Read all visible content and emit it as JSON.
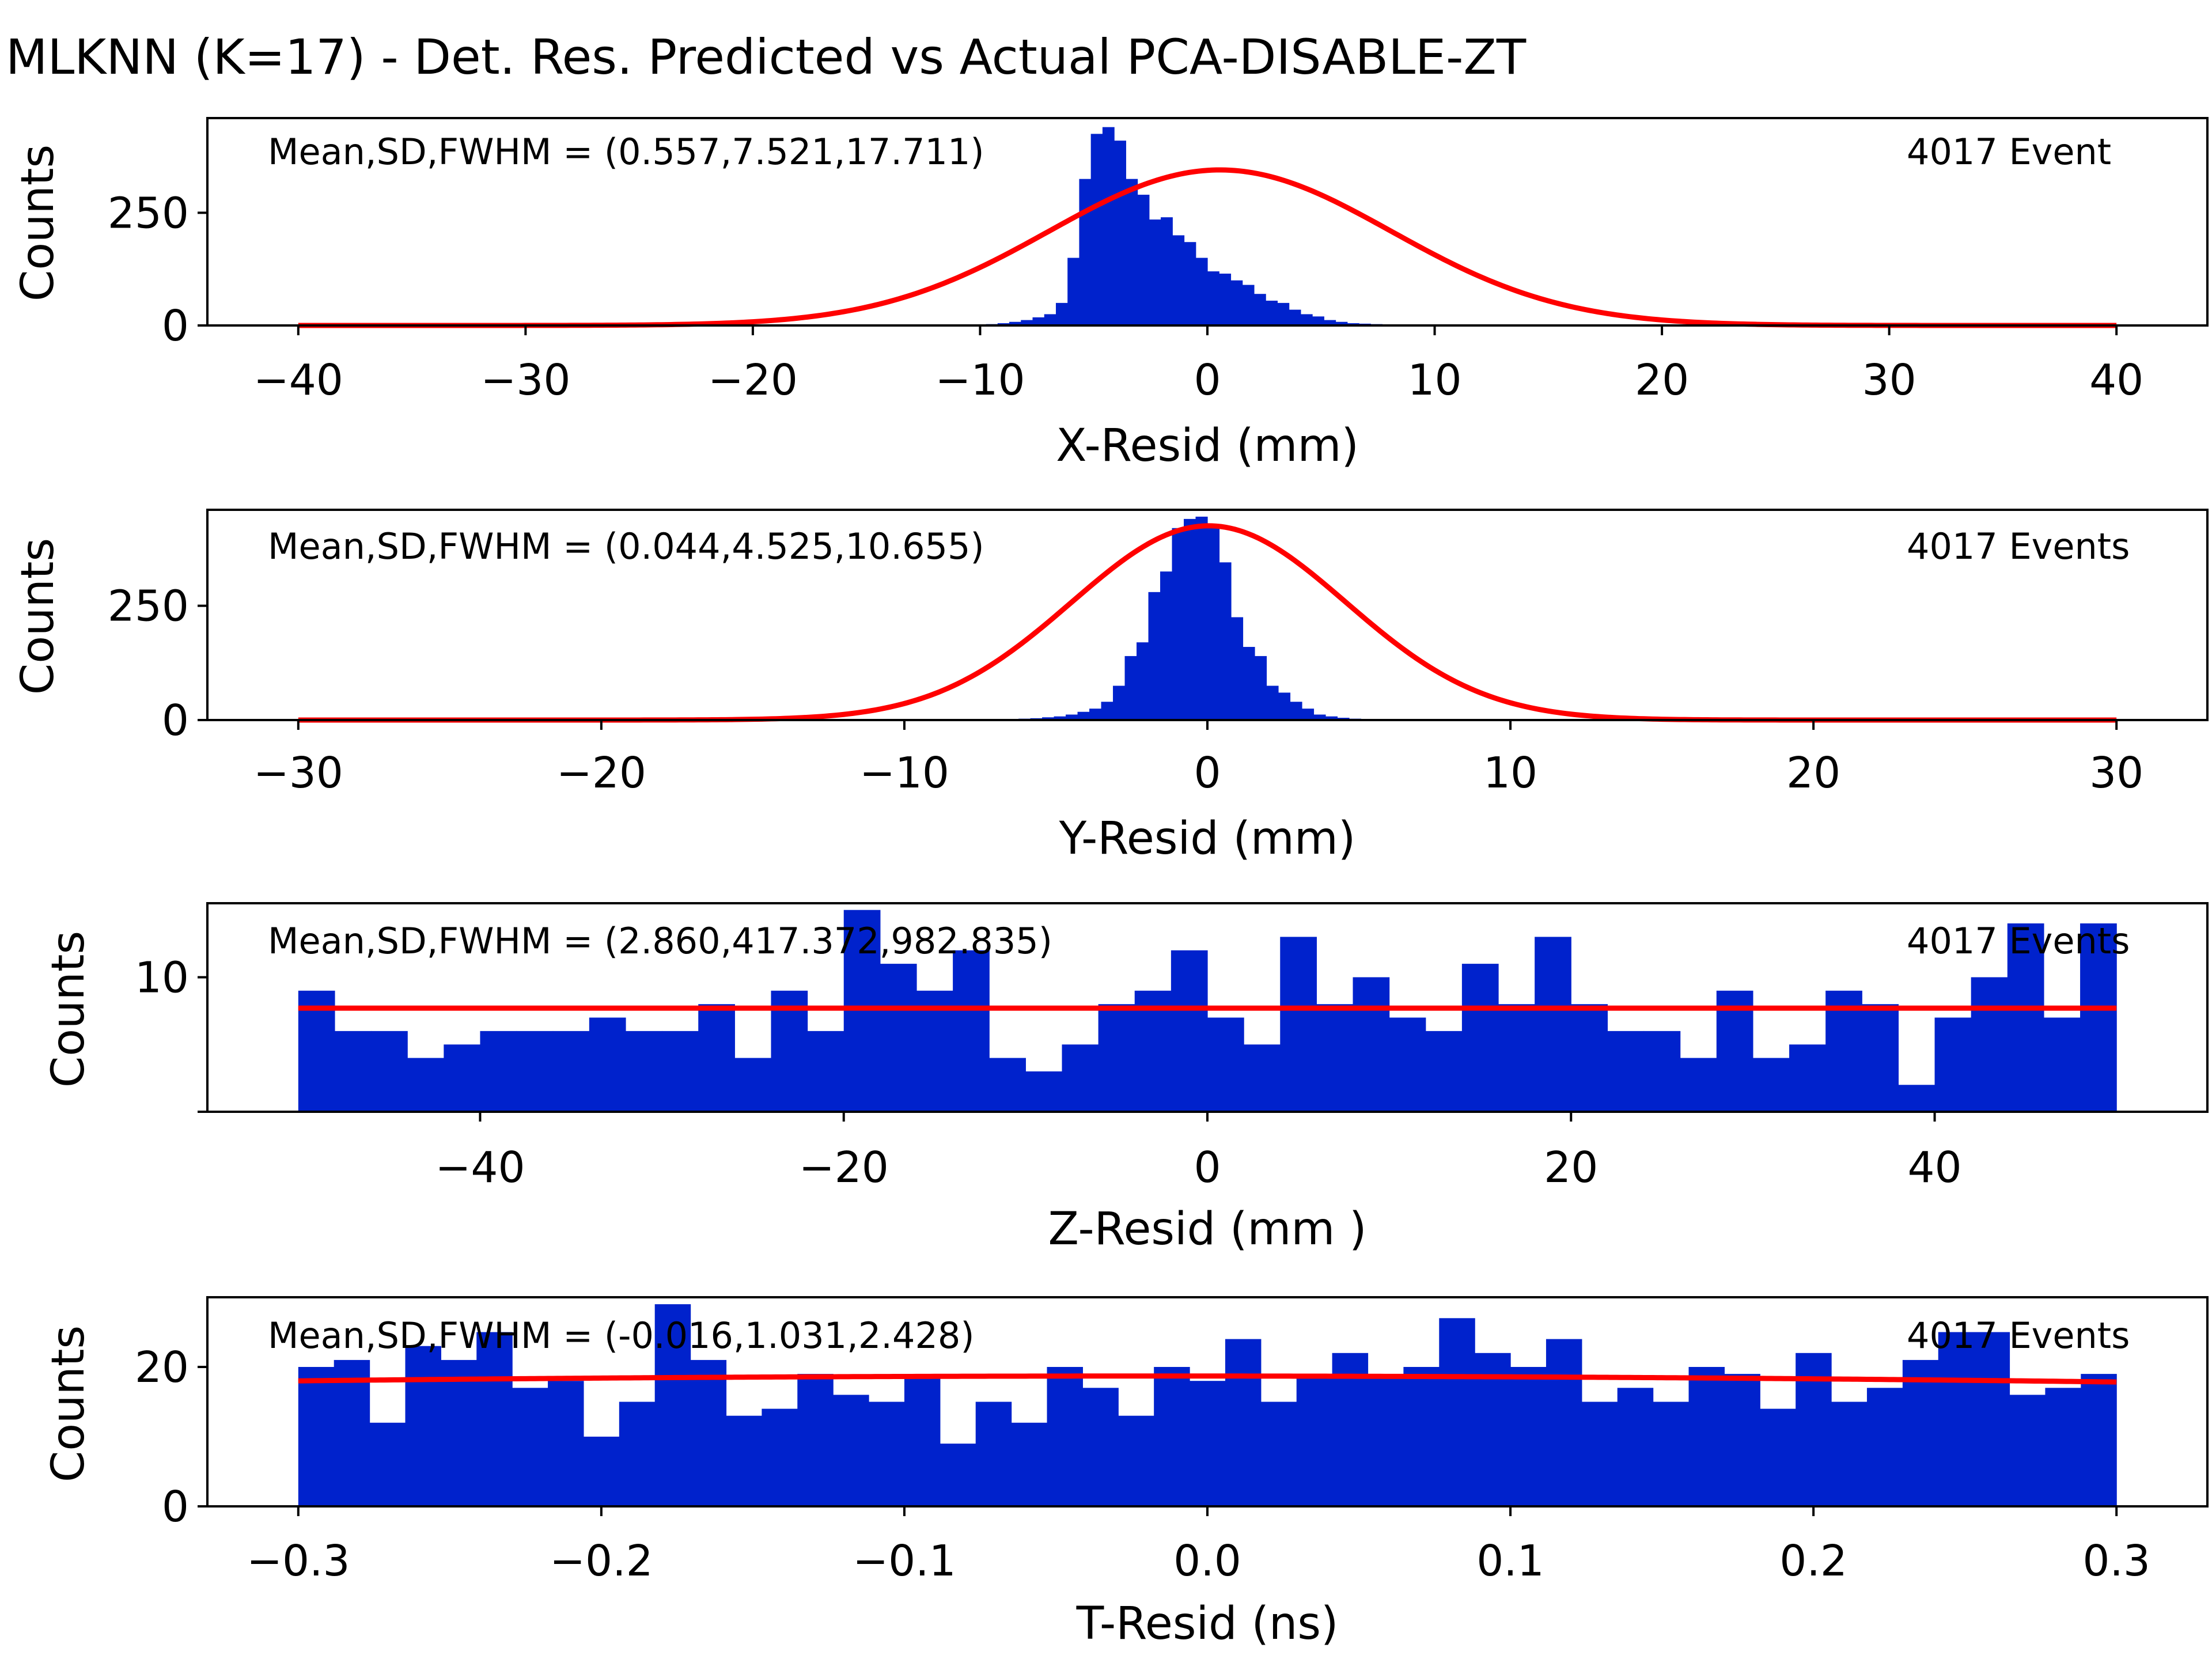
{
  "title": "MLKNN (K=17) - Det. Res. Predicted vs Actual PCA-DISABLE-ZT",
  "colors": {
    "bar": "#0022cc",
    "fit": "#ff0000"
  },
  "chart_data": [
    {
      "type": "bar",
      "xlabel": "X-Resid (mm)",
      "ylabel": "Counts",
      "annotation_left": "Mean,SD,FWHM = (0.557,7.521,17.711)",
      "annotation_right": "4017 Event",
      "xlim": [
        -44,
        44
      ],
      "ylim": [
        0,
        460
      ],
      "xticks": [
        -40,
        -30,
        -20,
        -10,
        0,
        10,
        20,
        30,
        40
      ],
      "xtick_labels": [
        "−40",
        "−30",
        "−20",
        "−10",
        "0",
        "10",
        "20",
        "30",
        "40"
      ],
      "yticks": [
        0,
        250
      ],
      "ytick_labels": [
        "0",
        "250"
      ],
      "bin_range": [
        -40,
        40
      ],
      "counts": [
        0,
        0,
        0,
        0,
        0,
        0,
        0,
        0,
        0,
        0,
        0,
        0,
        0,
        0,
        0,
        0,
        0,
        0,
        0,
        0,
        0,
        0,
        0,
        0,
        0,
        0,
        0,
        0,
        0,
        0,
        0,
        0,
        0,
        0,
        0,
        0,
        0,
        0,
        0,
        0,
        0,
        0,
        0,
        0,
        0,
        0,
        0,
        0,
        0,
        0,
        0,
        0,
        0,
        0,
        0,
        0,
        0,
        1,
        2,
        3,
        5,
        8,
        12,
        18,
        25,
        50,
        150,
        325,
        425,
        440,
        410,
        325,
        290,
        235,
        240,
        200,
        185,
        150,
        120,
        115,
        100,
        90,
        70,
        55,
        50,
        35,
        25,
        20,
        12,
        8,
        5,
        4,
        3,
        2,
        1,
        0,
        0,
        0,
        0,
        0,
        0,
        0,
        0,
        0,
        0,
        0,
        0,
        0,
        0,
        0,
        0,
        0,
        0,
        0,
        0,
        0,
        0,
        0,
        0,
        0,
        0,
        0,
        0,
        0,
        0,
        0,
        0,
        0,
        0,
        0,
        0,
        0,
        0,
        0,
        0,
        0,
        0,
        0,
        0,
        0,
        0,
        0,
        0,
        0,
        0,
        0,
        0,
        0,
        0,
        0,
        0,
        0,
        0,
        0,
        0,
        0
      ],
      "fit": {
        "type": "gaussian",
        "amplitude": 345,
        "mean": 0.557,
        "sigma": 7.521
      }
    },
    {
      "type": "bar",
      "xlabel": "Y-Resid (mm)",
      "ylabel": "Counts",
      "annotation_left": "Mean,SD,FWHM = (0.044,4.525,10.655)",
      "annotation_right": "4017 Events",
      "xlim": [
        -33,
        33
      ],
      "ylim": [
        0,
        460
      ],
      "xticks": [
        -30,
        -20,
        -10,
        0,
        10,
        20,
        30
      ],
      "xtick_labels": [
        "−30",
        "−20",
        "−10",
        "0",
        "10",
        "20",
        "30"
      ],
      "yticks": [
        0,
        250
      ],
      "ytick_labels": [
        "0",
        "250"
      ],
      "bin_range": [
        -30,
        30
      ],
      "counts": [
        0,
        0,
        0,
        0,
        0,
        0,
        0,
        0,
        0,
        0,
        0,
        0,
        0,
        0,
        0,
        0,
        0,
        0,
        0,
        0,
        0,
        0,
        0,
        0,
        0,
        0,
        0,
        0,
        0,
        0,
        0,
        0,
        0,
        0,
        0,
        0,
        0,
        0,
        0,
        0,
        0,
        0,
        0,
        0,
        0,
        0,
        0,
        0,
        0,
        0,
        0,
        0,
        0,
        0,
        0,
        0,
        0,
        0,
        1,
        1,
        2,
        3,
        4,
        6,
        8,
        12,
        18,
        25,
        40,
        75,
        140,
        170,
        280,
        325,
        420,
        440,
        445,
        420,
        345,
        225,
        160,
        140,
        75,
        60,
        40,
        25,
        12,
        8,
        5,
        3,
        2,
        1,
        1,
        0,
        0,
        0,
        0,
        0,
        0,
        0,
        0,
        0,
        0,
        0,
        0,
        0,
        0,
        0,
        0,
        0,
        0,
        0,
        0,
        0,
        0,
        0,
        0,
        0,
        0,
        0,
        0,
        0,
        0,
        0,
        0,
        0,
        0,
        0,
        0,
        0,
        0,
        0,
        0,
        0,
        0,
        0,
        0,
        0,
        0,
        0,
        0,
        0,
        0,
        0,
        0,
        0,
        0,
        0,
        0,
        0,
        0,
        0,
        0,
        0
      ],
      "fit": {
        "type": "gaussian",
        "amplitude": 425,
        "mean": 0.044,
        "sigma": 4.525
      }
    },
    {
      "type": "bar",
      "xlabel": "Z-Resid (mm   )",
      "ylabel": "Counts",
      "annotation_left": "Mean,SD,FWHM = (2.860,417.372,982.835)",
      "annotation_right": "4017 Events",
      "xlim": [
        -55,
        55
      ],
      "ylim": [
        0,
        15.5
      ],
      "xticks": [
        -40,
        -20,
        0,
        20,
        40
      ],
      "xtick_labels": [
        "−40",
        "−20",
        "0",
        "20",
        "40"
      ],
      "yticks": [
        10
      ],
      "ytick_labels": [
        "10"
      ],
      "extra_ytick_marks": [
        0
      ],
      "bin_range": [
        -50,
        50
      ],
      "counts": [
        9,
        6,
        6,
        4,
        5,
        6,
        6,
        6,
        7,
        6,
        6,
        8,
        4,
        9,
        6,
        15,
        11,
        9,
        12,
        4,
        3,
        5,
        8,
        9,
        12,
        7,
        5,
        13,
        8,
        10,
        7,
        6,
        11,
        8,
        13,
        8,
        6,
        6,
        4,
        9,
        4,
        5,
        9,
        8,
        2,
        7,
        10,
        14,
        7,
        14
      ],
      "fit": {
        "type": "constant",
        "value": 7.7
      }
    },
    {
      "type": "bar",
      "xlabel": "T-Resid (ns)",
      "ylabel": "Counts",
      "annotation_left": "Mean,SD,FWHM = (-0.016,1.031,2.428)",
      "annotation_right": "4017 Events",
      "xlim": [
        -0.33,
        0.33
      ],
      "ylim": [
        0,
        30
      ],
      "xticks": [
        -0.3,
        -0.2,
        -0.1,
        0.0,
        0.1,
        0.2,
        0.3
      ],
      "xtick_labels": [
        "−0.3",
        "−0.2",
        "−0.1",
        "0.0",
        "0.1",
        "0.2",
        "0.3"
      ],
      "yticks": [
        0,
        20
      ],
      "ytick_labels": [
        "0",
        "20"
      ],
      "bin_range": [
        -0.3,
        0.3
      ],
      "counts": [
        20,
        21,
        12,
        23,
        21,
        25,
        17,
        18,
        10,
        15,
        29,
        21,
        13,
        14,
        19,
        16,
        15,
        19,
        9,
        15,
        12,
        20,
        17,
        13,
        20,
        18,
        24,
        15,
        19,
        22,
        19,
        20,
        27,
        22,
        20,
        24,
        15,
        17,
        15,
        20,
        19,
        14,
        22,
        15,
        17,
        21,
        25,
        25,
        16,
        17,
        19
      ],
      "fit": {
        "type": "gaussian",
        "amplitude": 18.7,
        "mean": -0.016,
        "sigma": 1.031
      }
    }
  ]
}
